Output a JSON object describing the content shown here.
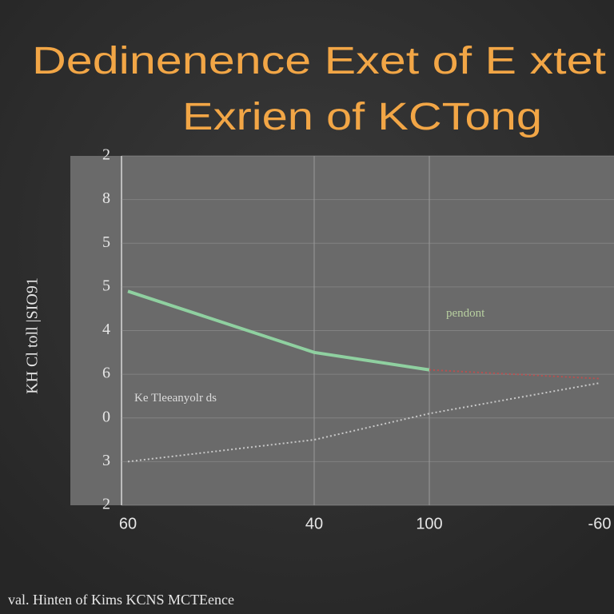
{
  "chart_data": {
    "type": "line",
    "title": "Dedinenence Exet of E xtet",
    "subtitle": "Exrien of KCTong",
    "y_label": "KH Cl toll |SIO91",
    "x_label": "val. Hinten of Kims KCNS MCTEence",
    "annotations": [
      "pendont",
      "Ke Tleeanyolr ds"
    ],
    "categories": [
      "60",
      "40",
      "100",
      "-60"
    ],
    "series": [
      {
        "color": "#8fd0a0",
        "style": "solid",
        "values": [
          4.9,
          3.5,
          3.1,
          null
        ]
      },
      {
        "color": "#b85050",
        "style": "dotted",
        "values": [
          null,
          null,
          3.1,
          2.9
        ]
      },
      {
        "color": "#c8c8c8",
        "style": "dotted",
        "values": [
          1.0,
          1.5,
          2.1,
          2.8
        ]
      }
    ],
    "ylim": [
      0,
      8
    ],
    "yticks": [
      {
        "value": 0,
        "label": "2"
      },
      {
        "value": 1,
        "label": "3"
      },
      {
        "value": 2,
        "label": "0"
      },
      {
        "value": 3,
        "label": "6"
      },
      {
        "value": 4,
        "label": "4"
      },
      {
        "value": 5,
        "label": "5"
      },
      {
        "value": 6,
        "label": "5"
      },
      {
        "value": 7,
        "label": "8"
      },
      {
        "value": 8,
        "label": "2"
      }
    ],
    "grid": true
  }
}
